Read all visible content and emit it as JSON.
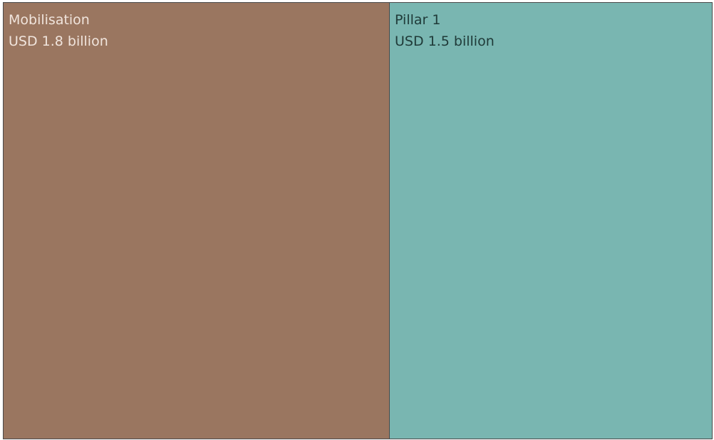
{
  "chart_data": {
    "type": "treemap",
    "items": [
      {
        "name": "Mobilisation",
        "value_label": "USD 1.8 billion",
        "value": 1.8,
        "color": "#9a7660",
        "text_color": "#f0e4dc"
      },
      {
        "name": "Pillar 1",
        "value_label": "USD 1.5 billion",
        "value": 1.5,
        "color": "#79b6b1",
        "text_color": "#1f3a38"
      }
    ]
  }
}
